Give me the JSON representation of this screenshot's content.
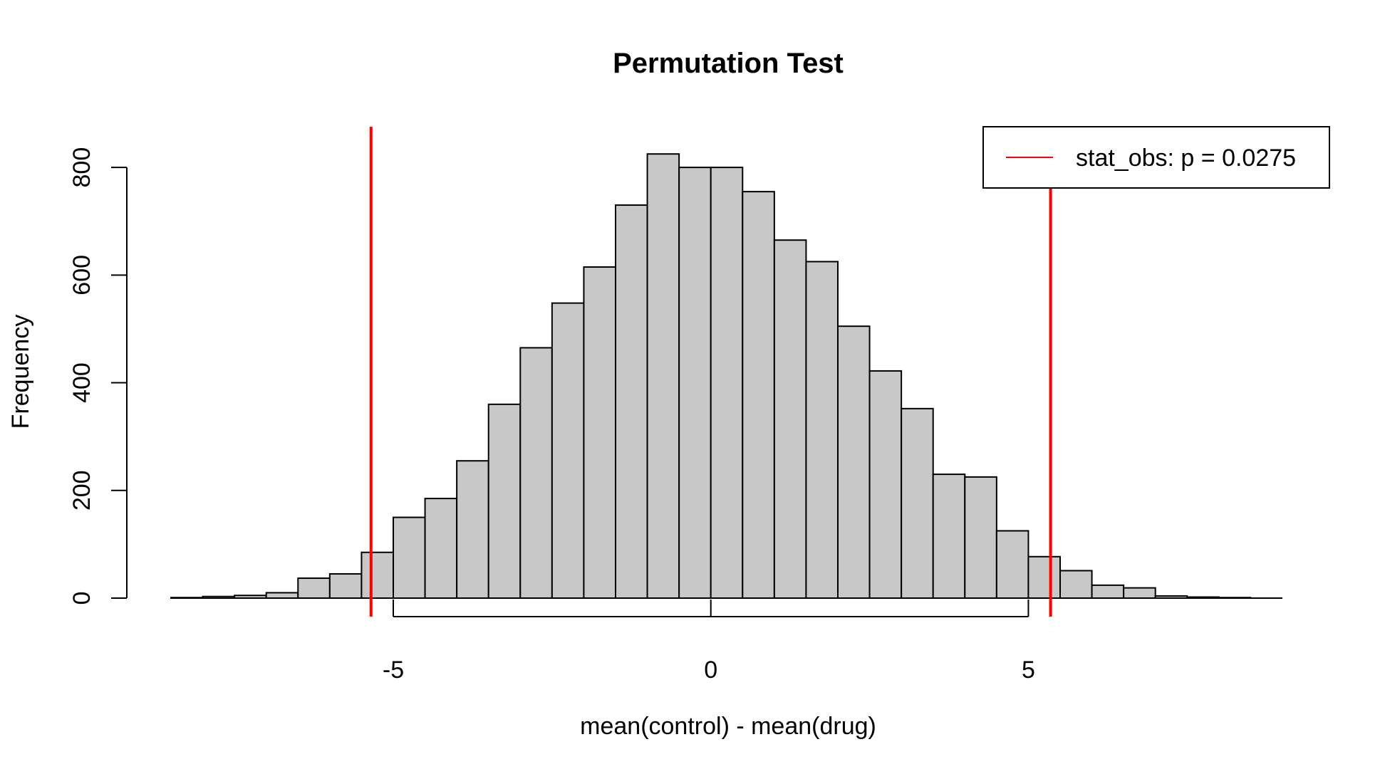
{
  "chart_data": {
    "type": "bar",
    "subtype": "histogram",
    "title": "Permutation Test",
    "xlabel": "mean(control) - mean(drug)",
    "ylabel": "Frequency",
    "xlim": [
      -8.5,
      9.0
    ],
    "ylim": [
      0,
      820
    ],
    "x_ticks": [
      -5,
      0,
      5
    ],
    "x_tick_labels": [
      "-5",
      "0",
      "5"
    ],
    "y_ticks": [
      0,
      200,
      400,
      600,
      800
    ],
    "y_tick_labels": [
      "0",
      "200",
      "400",
      "600",
      "800"
    ],
    "bin_width": 0.5,
    "bins": [
      {
        "x0": -8.5,
        "x1": -8.0,
        "count": 1
      },
      {
        "x0": -8.0,
        "x1": -7.5,
        "count": 3
      },
      {
        "x0": -7.5,
        "x1": -7.0,
        "count": 5
      },
      {
        "x0": -7.0,
        "x1": -6.5,
        "count": 10
      },
      {
        "x0": -6.5,
        "x1": -6.0,
        "count": 37
      },
      {
        "x0": -6.0,
        "x1": -5.5,
        "count": 45
      },
      {
        "x0": -5.5,
        "x1": -5.0,
        "count": 85
      },
      {
        "x0": -5.0,
        "x1": -4.5,
        "count": 150
      },
      {
        "x0": -4.5,
        "x1": -4.0,
        "count": 185
      },
      {
        "x0": -4.0,
        "x1": -3.5,
        "count": 255
      },
      {
        "x0": -3.5,
        "x1": -3.0,
        "count": 360
      },
      {
        "x0": -3.0,
        "x1": -2.5,
        "count": 465
      },
      {
        "x0": -2.5,
        "x1": -2.0,
        "count": 548
      },
      {
        "x0": -2.0,
        "x1": -1.5,
        "count": 615
      },
      {
        "x0": -1.5,
        "x1": -1.0,
        "count": 730
      },
      {
        "x0": -1.0,
        "x1": -0.5,
        "count": 825
      },
      {
        "x0": -0.5,
        "x1": 0.0,
        "count": 800
      },
      {
        "x0": 0.0,
        "x1": 0.5,
        "count": 800
      },
      {
        "x0": 0.5,
        "x1": 1.0,
        "count": 755
      },
      {
        "x0": 1.0,
        "x1": 1.5,
        "count": 665
      },
      {
        "x0": 1.5,
        "x1": 2.0,
        "count": 625
      },
      {
        "x0": 2.0,
        "x1": 2.5,
        "count": 505
      },
      {
        "x0": 2.5,
        "x1": 3.0,
        "count": 422
      },
      {
        "x0": 3.0,
        "x1": 3.5,
        "count": 352
      },
      {
        "x0": 3.5,
        "x1": 4.0,
        "count": 230
      },
      {
        "x0": 4.0,
        "x1": 4.5,
        "count": 225
      },
      {
        "x0": 4.5,
        "x1": 5.0,
        "count": 125
      },
      {
        "x0": 5.0,
        "x1": 5.5,
        "count": 77
      },
      {
        "x0": 5.5,
        "x1": 6.0,
        "count": 51
      },
      {
        "x0": 6.0,
        "x1": 6.5,
        "count": 24
      },
      {
        "x0": 6.5,
        "x1": 7.0,
        "count": 19
      },
      {
        "x0": 7.0,
        "x1": 7.5,
        "count": 4
      },
      {
        "x0": 7.5,
        "x1": 8.0,
        "count": 2
      },
      {
        "x0": 8.0,
        "x1": 8.5,
        "count": 1
      },
      {
        "x0": 8.5,
        "x1": 9.0,
        "count": 0
      }
    ],
    "bar_fill": "#c8c8c8",
    "bar_stroke": "#000000",
    "vlines": [
      {
        "x": -5.35,
        "color": "#ff0000"
      },
      {
        "x": 5.35,
        "color": "#ff0000"
      }
    ],
    "legend": {
      "position": "top-right",
      "entries": [
        {
          "label": "stat_obs: p =  0.0275",
          "color": "#ff0000"
        }
      ]
    },
    "grid": false
  }
}
